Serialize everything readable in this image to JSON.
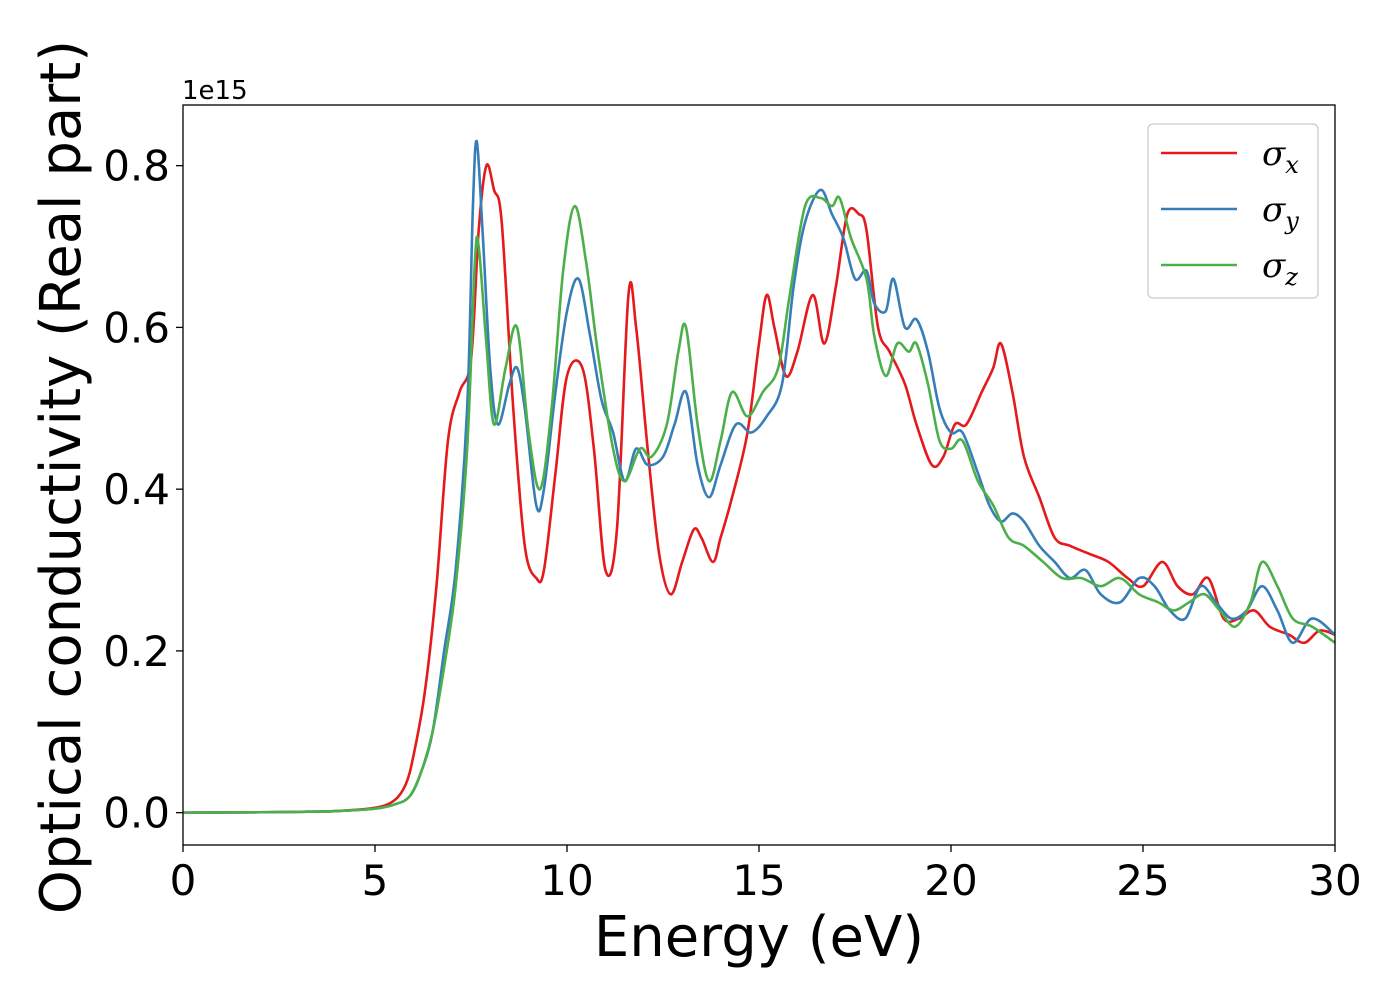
{
  "chart_data": {
    "type": "line",
    "title": "",
    "xlabel": "Energy (eV)",
    "ylabel": "Optical conductivity (Real part)",
    "y_offset_label": "1e15",
    "xlim": [
      0,
      30
    ],
    "ylim": [
      -0.04,
      0.875
    ],
    "x_ticks": [
      0,
      5,
      10,
      15,
      20,
      25,
      30
    ],
    "x_tick_labels": [
      "0",
      "5",
      "10",
      "15",
      "20",
      "25",
      "30"
    ],
    "y_ticks": [
      0.0,
      0.2,
      0.4,
      0.6,
      0.8
    ],
    "y_tick_labels": [
      "0.0",
      "0.2",
      "0.4",
      "0.6",
      "0.8"
    ],
    "grid": false,
    "legend_position": "top-right",
    "series": [
      {
        "name": "σx",
        "legend_symbol": "σ",
        "legend_subscript": "x",
        "color": "#e41a1c",
        "points": [
          [
            0,
            0
          ],
          [
            2,
            0.0005
          ],
          [
            3,
            0.001
          ],
          [
            4,
            0.002
          ],
          [
            5,
            0.006
          ],
          [
            5.5,
            0.015
          ],
          [
            5.8,
            0.035
          ],
          [
            6.0,
            0.07
          ],
          [
            6.3,
            0.15
          ],
          [
            6.6,
            0.28
          ],
          [
            6.9,
            0.46
          ],
          [
            7.2,
            0.52
          ],
          [
            7.5,
            0.56
          ],
          [
            7.7,
            0.72
          ],
          [
            7.9,
            0.8
          ],
          [
            8.1,
            0.77
          ],
          [
            8.3,
            0.73
          ],
          [
            8.6,
            0.5
          ],
          [
            8.9,
            0.33
          ],
          [
            9.2,
            0.29
          ],
          [
            9.4,
            0.3
          ],
          [
            9.7,
            0.42
          ],
          [
            10.0,
            0.54
          ],
          [
            10.4,
            0.55
          ],
          [
            10.7,
            0.45
          ],
          [
            11.0,
            0.3
          ],
          [
            11.3,
            0.35
          ],
          [
            11.6,
            0.64
          ],
          [
            11.8,
            0.6
          ],
          [
            12.1,
            0.45
          ],
          [
            12.4,
            0.32
          ],
          [
            12.7,
            0.27
          ],
          [
            13.0,
            0.31
          ],
          [
            13.3,
            0.35
          ],
          [
            13.5,
            0.34
          ],
          [
            13.8,
            0.31
          ],
          [
            14.0,
            0.34
          ],
          [
            14.3,
            0.39
          ],
          [
            14.7,
            0.47
          ],
          [
            15.0,
            0.58
          ],
          [
            15.2,
            0.64
          ],
          [
            15.4,
            0.6
          ],
          [
            15.7,
            0.54
          ],
          [
            16.0,
            0.57
          ],
          [
            16.4,
            0.64
          ],
          [
            16.7,
            0.58
          ],
          [
            17.0,
            0.65
          ],
          [
            17.3,
            0.74
          ],
          [
            17.6,
            0.74
          ],
          [
            17.8,
            0.72
          ],
          [
            18.1,
            0.6
          ],
          [
            18.4,
            0.57
          ],
          [
            18.8,
            0.53
          ],
          [
            19.1,
            0.48
          ],
          [
            19.5,
            0.43
          ],
          [
            19.8,
            0.44
          ],
          [
            20.1,
            0.48
          ],
          [
            20.4,
            0.48
          ],
          [
            20.8,
            0.52
          ],
          [
            21.1,
            0.55
          ],
          [
            21.3,
            0.58
          ],
          [
            21.6,
            0.52
          ],
          [
            21.9,
            0.44
          ],
          [
            22.3,
            0.39
          ],
          [
            22.7,
            0.34
          ],
          [
            23.1,
            0.33
          ],
          [
            23.6,
            0.32
          ],
          [
            24.1,
            0.31
          ],
          [
            24.6,
            0.29
          ],
          [
            25.0,
            0.28
          ],
          [
            25.5,
            0.31
          ],
          [
            25.9,
            0.28
          ],
          [
            26.3,
            0.27
          ],
          [
            26.7,
            0.29
          ],
          [
            27.1,
            0.24
          ],
          [
            27.5,
            0.24
          ],
          [
            27.9,
            0.25
          ],
          [
            28.3,
            0.23
          ],
          [
            28.8,
            0.22
          ],
          [
            29.2,
            0.21
          ],
          [
            29.6,
            0.225
          ],
          [
            30,
            0.22
          ]
        ]
      },
      {
        "name": "σy",
        "legend_symbol": "σ",
        "legend_subscript": "y",
        "color": "#377eb8",
        "points": [
          [
            0,
            0
          ],
          [
            2,
            0.0005
          ],
          [
            3,
            0.001
          ],
          [
            4,
            0.002
          ],
          [
            5,
            0.005
          ],
          [
            5.5,
            0.01
          ],
          [
            5.9,
            0.02
          ],
          [
            6.2,
            0.05
          ],
          [
            6.5,
            0.1
          ],
          [
            6.8,
            0.2
          ],
          [
            7.1,
            0.3
          ],
          [
            7.4,
            0.5
          ],
          [
            7.55,
            0.75
          ],
          [
            7.65,
            0.83
          ],
          [
            7.8,
            0.72
          ],
          [
            8.0,
            0.55
          ],
          [
            8.2,
            0.48
          ],
          [
            8.5,
            0.53
          ],
          [
            8.7,
            0.55
          ],
          [
            8.9,
            0.5
          ],
          [
            9.2,
            0.38
          ],
          [
            9.4,
            0.4
          ],
          [
            9.7,
            0.52
          ],
          [
            10.0,
            0.62
          ],
          [
            10.3,
            0.66
          ],
          [
            10.6,
            0.59
          ],
          [
            10.9,
            0.51
          ],
          [
            11.2,
            0.47
          ],
          [
            11.5,
            0.41
          ],
          [
            11.8,
            0.45
          ],
          [
            12.1,
            0.43
          ],
          [
            12.5,
            0.44
          ],
          [
            12.8,
            0.48
          ],
          [
            13.1,
            0.52
          ],
          [
            13.4,
            0.43
          ],
          [
            13.7,
            0.39
          ],
          [
            14.0,
            0.43
          ],
          [
            14.4,
            0.48
          ],
          [
            14.8,
            0.47
          ],
          [
            15.2,
            0.49
          ],
          [
            15.6,
            0.53
          ],
          [
            15.9,
            0.65
          ],
          [
            16.2,
            0.73
          ],
          [
            16.6,
            0.77
          ],
          [
            16.9,
            0.74
          ],
          [
            17.2,
            0.71
          ],
          [
            17.5,
            0.66
          ],
          [
            17.8,
            0.67
          ],
          [
            18.0,
            0.63
          ],
          [
            18.3,
            0.62
          ],
          [
            18.5,
            0.66
          ],
          [
            18.8,
            0.6
          ],
          [
            19.1,
            0.61
          ],
          [
            19.4,
            0.57
          ],
          [
            19.7,
            0.5
          ],
          [
            20.0,
            0.47
          ],
          [
            20.3,
            0.47
          ],
          [
            20.7,
            0.42
          ],
          [
            21.0,
            0.38
          ],
          [
            21.3,
            0.36
          ],
          [
            21.6,
            0.37
          ],
          [
            21.9,
            0.36
          ],
          [
            22.3,
            0.33
          ],
          [
            22.7,
            0.31
          ],
          [
            23.1,
            0.29
          ],
          [
            23.5,
            0.3
          ],
          [
            23.9,
            0.27
          ],
          [
            24.4,
            0.26
          ],
          [
            24.9,
            0.29
          ],
          [
            25.3,
            0.28
          ],
          [
            25.7,
            0.25
          ],
          [
            26.1,
            0.24
          ],
          [
            26.5,
            0.28
          ],
          [
            26.9,
            0.26
          ],
          [
            27.3,
            0.24
          ],
          [
            27.7,
            0.25
          ],
          [
            28.1,
            0.28
          ],
          [
            28.5,
            0.25
          ],
          [
            28.9,
            0.21
          ],
          [
            29.4,
            0.24
          ],
          [
            30,
            0.22
          ]
        ]
      },
      {
        "name": "σz",
        "legend_symbol": "σ",
        "legend_subscript": "z",
        "color": "#4daf4a",
        "points": [
          [
            0,
            0
          ],
          [
            2,
            0.0005
          ],
          [
            3,
            0.001
          ],
          [
            4,
            0.002
          ],
          [
            5,
            0.005
          ],
          [
            5.5,
            0.01
          ],
          [
            5.9,
            0.02
          ],
          [
            6.2,
            0.05
          ],
          [
            6.5,
            0.1
          ],
          [
            6.8,
            0.18
          ],
          [
            7.1,
            0.28
          ],
          [
            7.4,
            0.45
          ],
          [
            7.6,
            0.68
          ],
          [
            7.7,
            0.7
          ],
          [
            7.9,
            0.58
          ],
          [
            8.1,
            0.48
          ],
          [
            8.4,
            0.55
          ],
          [
            8.7,
            0.6
          ],
          [
            9.0,
            0.47
          ],
          [
            9.3,
            0.4
          ],
          [
            9.6,
            0.5
          ],
          [
            9.9,
            0.67
          ],
          [
            10.2,
            0.75
          ],
          [
            10.5,
            0.68
          ],
          [
            10.8,
            0.57
          ],
          [
            11.2,
            0.45
          ],
          [
            11.5,
            0.41
          ],
          [
            11.9,
            0.45
          ],
          [
            12.2,
            0.44
          ],
          [
            12.6,
            0.48
          ],
          [
            12.9,
            0.57
          ],
          [
            13.1,
            0.6
          ],
          [
            13.4,
            0.48
          ],
          [
            13.7,
            0.41
          ],
          [
            14.0,
            0.46
          ],
          [
            14.3,
            0.52
          ],
          [
            14.7,
            0.49
          ],
          [
            15.1,
            0.52
          ],
          [
            15.5,
            0.55
          ],
          [
            15.8,
            0.64
          ],
          [
            16.2,
            0.75
          ],
          [
            16.6,
            0.76
          ],
          [
            16.9,
            0.75
          ],
          [
            17.1,
            0.76
          ],
          [
            17.4,
            0.71
          ],
          [
            17.8,
            0.66
          ],
          [
            18.0,
            0.59
          ],
          [
            18.3,
            0.54
          ],
          [
            18.6,
            0.58
          ],
          [
            18.9,
            0.57
          ],
          [
            19.1,
            0.58
          ],
          [
            19.4,
            0.53
          ],
          [
            19.7,
            0.46
          ],
          [
            20.0,
            0.45
          ],
          [
            20.3,
            0.46
          ],
          [
            20.7,
            0.41
          ],
          [
            21.1,
            0.38
          ],
          [
            21.5,
            0.34
          ],
          [
            21.9,
            0.33
          ],
          [
            22.4,
            0.31
          ],
          [
            22.9,
            0.29
          ],
          [
            23.4,
            0.29
          ],
          [
            23.9,
            0.28
          ],
          [
            24.4,
            0.29
          ],
          [
            24.9,
            0.27
          ],
          [
            25.4,
            0.26
          ],
          [
            25.8,
            0.25
          ],
          [
            26.2,
            0.26
          ],
          [
            26.6,
            0.27
          ],
          [
            27.0,
            0.25
          ],
          [
            27.4,
            0.23
          ],
          [
            27.8,
            0.26
          ],
          [
            28.1,
            0.31
          ],
          [
            28.5,
            0.28
          ],
          [
            28.9,
            0.24
          ],
          [
            29.4,
            0.23
          ],
          [
            30,
            0.21
          ]
        ]
      }
    ]
  }
}
